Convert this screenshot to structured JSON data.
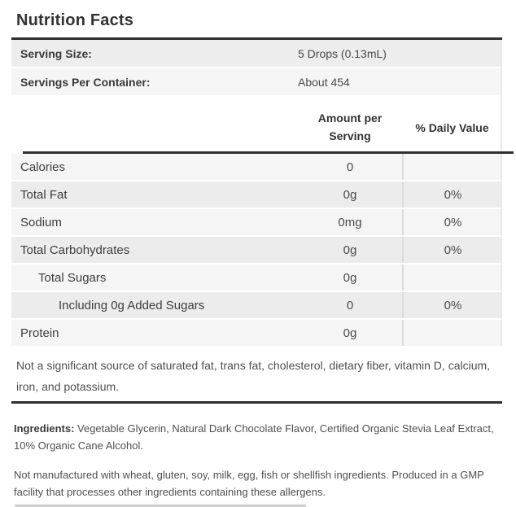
{
  "title": "Nutrition Facts",
  "serving_info": {
    "rows": [
      {
        "label": "Serving Size:",
        "value": "5 Drops (0.13mL)"
      },
      {
        "label": "Servings Per Container:",
        "value": "About 454"
      }
    ]
  },
  "nutrient_table": {
    "header": {
      "amount": "Amount per Serving",
      "daily_value": "% Daily Value"
    },
    "rows": [
      {
        "label": "Calories",
        "amount": "0",
        "daily_value": "",
        "indent": 0
      },
      {
        "label": "Total Fat",
        "amount": "0g",
        "daily_value": "0%",
        "indent": 0
      },
      {
        "label": "Sodium",
        "amount": "0mg",
        "daily_value": "0%",
        "indent": 0
      },
      {
        "label": "Total Carbohydrates",
        "amount": "0g",
        "daily_value": "0%",
        "indent": 0
      },
      {
        "label": "Total Sugars",
        "amount": "0g",
        "daily_value": "",
        "indent": 1
      },
      {
        "label": "Including 0g Added Sugars",
        "amount": "0",
        "daily_value": "0%",
        "indent": 2
      },
      {
        "label": "Protein",
        "amount": "0g",
        "daily_value": "",
        "indent": 0
      }
    ]
  },
  "footnote": "Not a significant source of saturated fat, trans fat, cholesterol, dietary fiber, vitamin D, calcium, iron, and potassium.",
  "ingredients": {
    "label": "Ingredients:",
    "text": " Vegetable Glycerin, Natural Dark Chocolate Flavor, Certified Organic Stevia Leaf Extract, 10% Organic Cane Alcohol."
  },
  "allergen_statement": "Not manufactured with wheat, gluten, soy, milk, egg, fish or shellfish ingredients. Produced in a GMP facility that processes other ingredients containing these allergens.",
  "colors": {
    "rule": "#2f2f2f",
    "row_shade_light": "#f5f5f5",
    "row_shade_dark": "#ececec",
    "column_divider": "#dcdcdc",
    "title_text": "#333333",
    "body_text": "#4f4f4f"
  }
}
